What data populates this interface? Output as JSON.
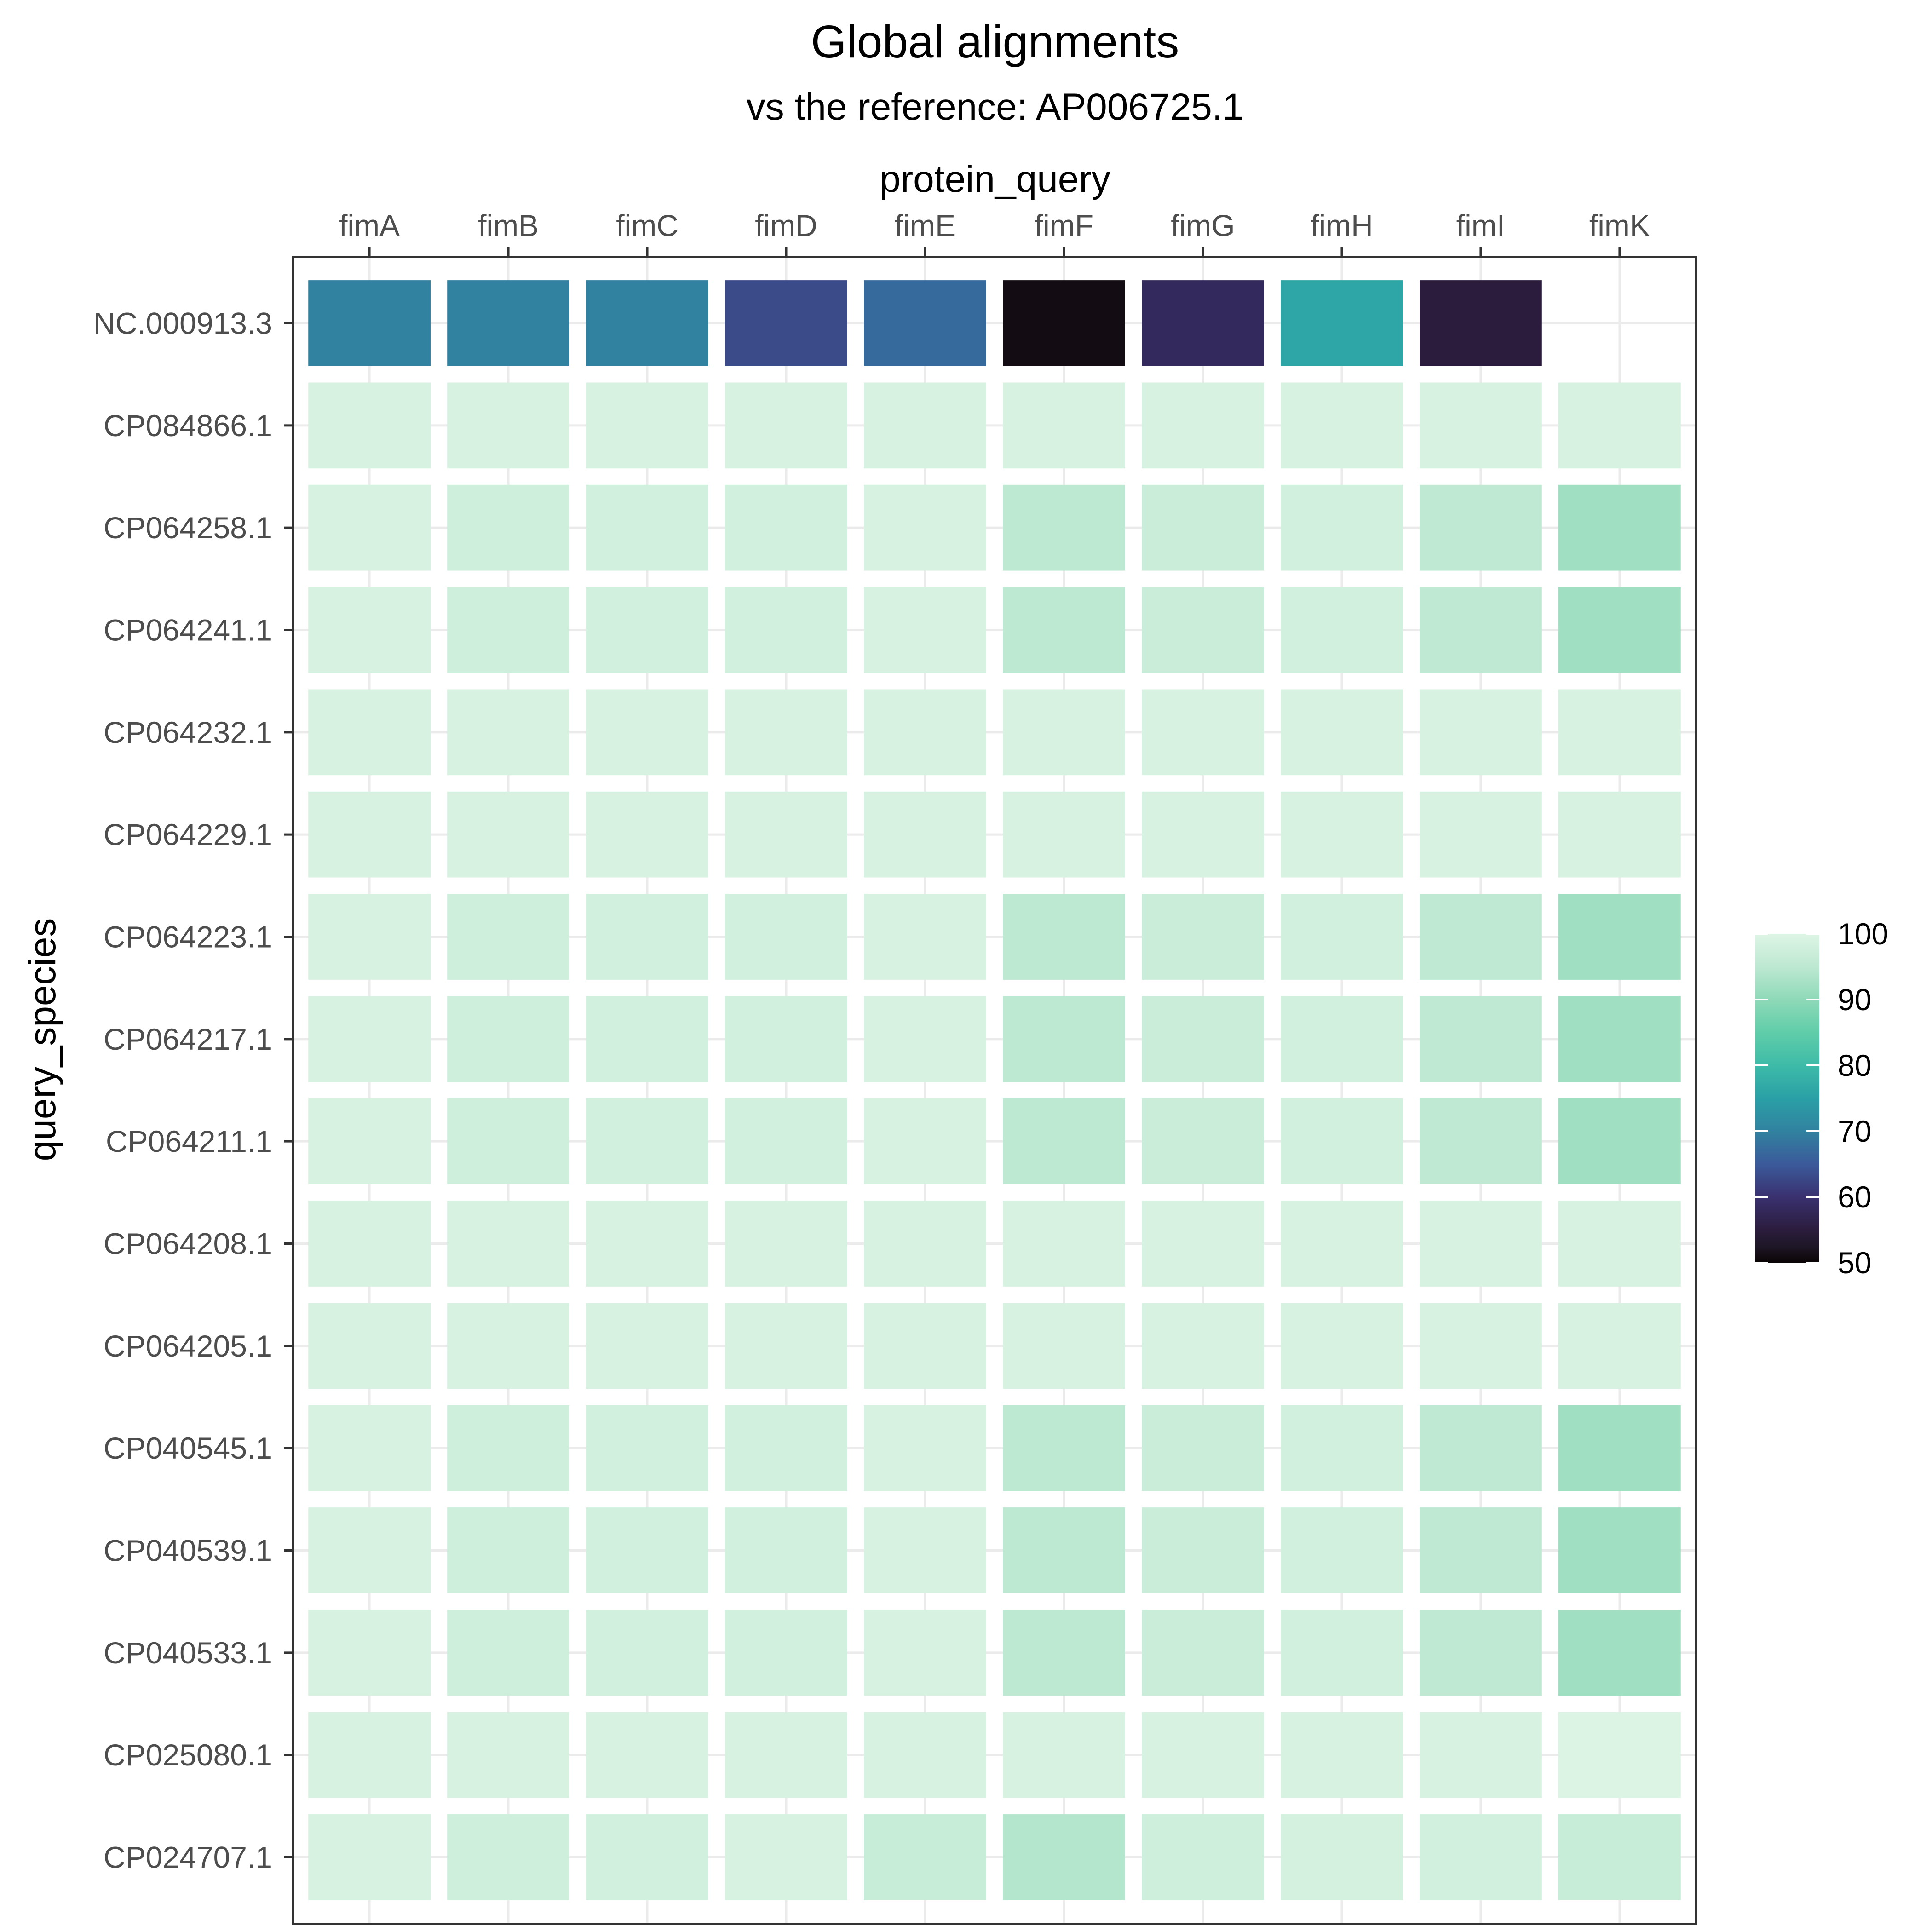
{
  "chart_data": {
    "type": "heatmap",
    "title": "Global alignments",
    "subtitle": "vs the reference: AP006725.1",
    "xlabel": "protein_query",
    "ylabel": "query_species",
    "x_axis_position": "top",
    "x": [
      "fimA",
      "fimB",
      "fimC",
      "fimD",
      "fimE",
      "fimF",
      "fimG",
      "fimH",
      "fimI",
      "fimK"
    ],
    "y": [
      "NC.000913.3",
      "CP084866.1",
      "CP064258.1",
      "CP064241.1",
      "CP064232.1",
      "CP064229.1",
      "CP064223.1",
      "CP064217.1",
      "CP064211.1",
      "CP064208.1",
      "CP064205.1",
      "CP040545.1",
      "CP040539.1",
      "CP040533.1",
      "CP025080.1",
      "CP024707.1"
    ],
    "values": [
      [
        70,
        70,
        70,
        63,
        67,
        51,
        58,
        76,
        55,
        null
      ],
      [
        99,
        99,
        99,
        99,
        99,
        99,
        99,
        99,
        99,
        99
      ],
      [
        99,
        97.5,
        98,
        98,
        99,
        95,
        97,
        98,
        95.5,
        92
      ],
      [
        99,
        97.5,
        98,
        98,
        99,
        95,
        97,
        98,
        95.5,
        92
      ],
      [
        99,
        99,
        99,
        99,
        99,
        99,
        99,
        99,
        99,
        99
      ],
      [
        99,
        99,
        99,
        99,
        99,
        99,
        99,
        99,
        99,
        99
      ],
      [
        99,
        97.5,
        98,
        98,
        99,
        95,
        97,
        98,
        95.5,
        92
      ],
      [
        99,
        97.5,
        98,
        98,
        99,
        95,
        97,
        98,
        95.5,
        92
      ],
      [
        99,
        97.5,
        98,
        98,
        99,
        95,
        97,
        98,
        95.5,
        92
      ],
      [
        99,
        99,
        99,
        99,
        99,
        99,
        99,
        99,
        99,
        99
      ],
      [
        99,
        99,
        99,
        99,
        99,
        99,
        99,
        99,
        99,
        99
      ],
      [
        99,
        97.5,
        98,
        98,
        99,
        95,
        97,
        98,
        95.5,
        92
      ],
      [
        99,
        97.5,
        98,
        98,
        99,
        95,
        97,
        98,
        95.5,
        92
      ],
      [
        99,
        97.5,
        98,
        98,
        99,
        95,
        97,
        98,
        95.5,
        92
      ],
      [
        99,
        99,
        99,
        99,
        99,
        99,
        99,
        99,
        99,
        99.5
      ],
      [
        99,
        97.5,
        98,
        99,
        96.5,
        94,
        97.5,
        98.5,
        98,
        96.5
      ]
    ],
    "legend": {
      "position": "right",
      "range": [
        50,
        100
      ],
      "ticks": [
        50,
        60,
        70,
        80,
        90,
        100
      ]
    },
    "colorscale": [
      [
        0.0,
        "#0b0405"
      ],
      [
        0.05,
        "#1e1727"
      ],
      [
        0.1,
        "#2b1c3d"
      ],
      [
        0.2,
        "#3a3170"
      ],
      [
        0.3,
        "#3b5a9a"
      ],
      [
        0.4,
        "#3182a0"
      ],
      [
        0.5,
        "#2aa0a6"
      ],
      [
        0.6,
        "#3ebba8"
      ],
      [
        0.7,
        "#60cda9"
      ],
      [
        0.8,
        "#8ed9b8"
      ],
      [
        0.9,
        "#bde8d2"
      ],
      [
        1.0,
        "#def5e5"
      ]
    ],
    "grid": true
  }
}
